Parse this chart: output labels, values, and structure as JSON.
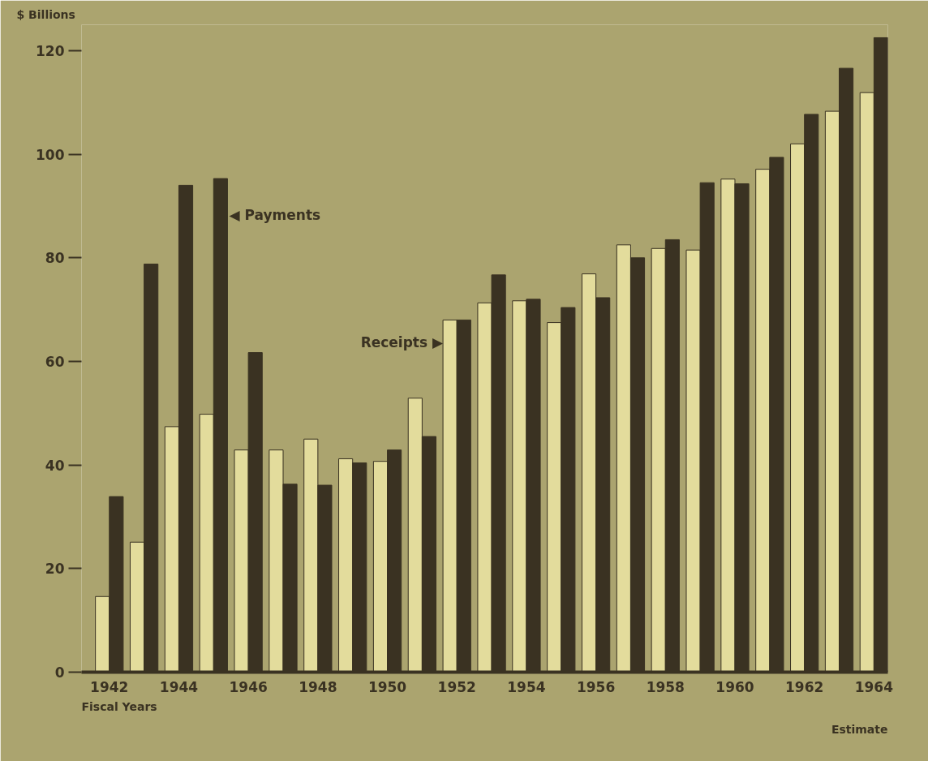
{
  "chart_data": {
    "type": "bar",
    "ylabel": "$ Billions",
    "xlabel": "Fiscal Years",
    "x": [
      1942,
      1943,
      1944,
      1945,
      1946,
      1947,
      1948,
      1949,
      1950,
      1951,
      1952,
      1953,
      1954,
      1955,
      1956,
      1957,
      1958,
      1959,
      1960,
      1961,
      1962,
      1963,
      1964
    ],
    "series": [
      {
        "color": "#e3dc9c",
        "values": [
          14.6,
          25.1,
          47.4,
          49.8,
          42.9,
          42.9,
          45.0,
          41.2,
          40.7,
          52.9,
          68.0,
          71.3,
          71.7,
          67.5,
          76.9,
          82.5,
          81.8,
          81.5,
          95.2,
          97.1,
          102.0,
          108.3,
          111.9
        ]
      },
      {
        "color": "#3a3222",
        "values": [
          33.9,
          78.8,
          94.0,
          95.3,
          61.7,
          36.3,
          36.1,
          40.4,
          42.9,
          45.5,
          68.0,
          76.7,
          72.0,
          70.4,
          72.3,
          80.0,
          83.5,
          94.5,
          94.3,
          99.4,
          107.7,
          116.6,
          122.5
        ]
      }
    ],
    "xlim": [
      1941.2,
      1964.4
    ],
    "xticks": [
      1942,
      1944,
      1946,
      1948,
      1950,
      1952,
      1954,
      1956,
      1958,
      1960,
      1962,
      1964
    ],
    "ylim": [
      0,
      125
    ],
    "yticks": [
      0,
      20,
      40,
      60,
      80,
      100,
      120
    ],
    "grid": false,
    "legend": false,
    "annotations": [
      {
        "text": "◀ Payments",
        "x": 1945.45,
        "y": 88.3
      },
      {
        "text": "Receipts ▶",
        "x": 1951.6,
        "y": 63.7
      },
      "Estimate"
    ]
  }
}
